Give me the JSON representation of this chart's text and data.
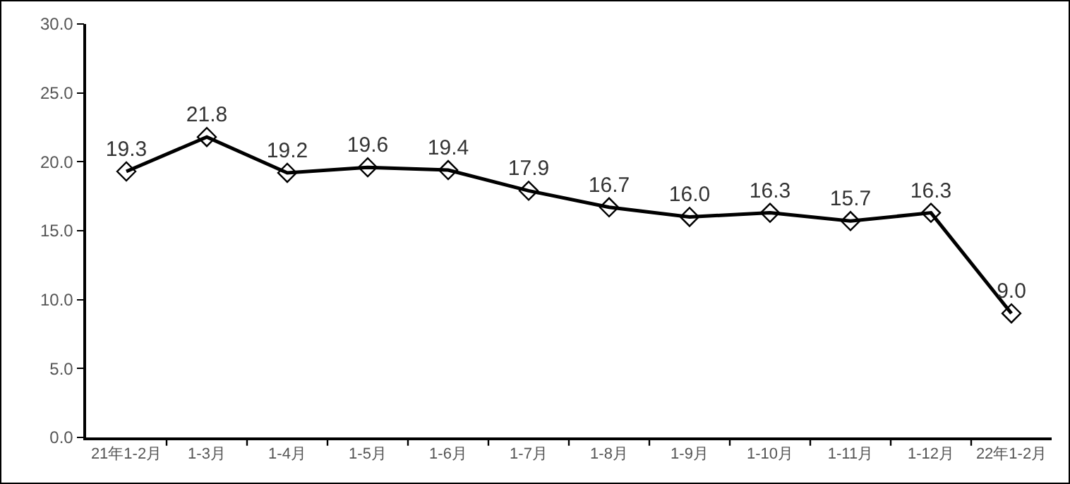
{
  "chart_data": {
    "type": "line",
    "categories": [
      "21年1-2月",
      "1-3月",
      "1-4月",
      "1-5月",
      "1-6月",
      "1-7月",
      "1-8月",
      "1-9月",
      "1-10月",
      "1-11月",
      "1-12月",
      "22年1-2月"
    ],
    "series": [
      {
        "color": "#000000",
        "values": [
          19.3,
          21.8,
          19.2,
          19.6,
          19.4,
          17.9,
          16.7,
          16.0,
          16.3,
          15.7,
          16.3,
          9.0
        ],
        "value_labels": [
          "19.3",
          "21.8",
          "19.2",
          "19.6",
          "19.4",
          "17.9",
          "16.7",
          "16.0",
          "16.3",
          "15.7",
          "16.3",
          "9.0"
        ]
      }
    ],
    "ylim": [
      0,
      30
    ],
    "yticks": [
      {
        "value": 0,
        "label": "0.0"
      },
      {
        "value": 5,
        "label": "5.0"
      },
      {
        "value": 10,
        "label": "10.0"
      },
      {
        "value": 15,
        "label": "15.0"
      },
      {
        "value": 20,
        "label": "20.0"
      },
      {
        "value": 25,
        "label": "25.0"
      },
      {
        "value": 30,
        "label": "30.0"
      }
    ],
    "marker": "diamond",
    "line_style": "solid"
  }
}
